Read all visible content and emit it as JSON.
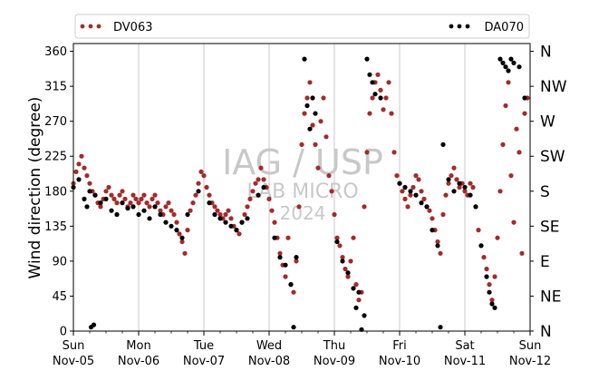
{
  "chart_data": {
    "type": "scatter",
    "title": "",
    "ylabel": "Wind direction (degree)",
    "xlabel": "",
    "xlim": [
      "2023-11-05 00:00",
      "2023-11-12 00:00"
    ],
    "ylim": [
      0,
      370
    ],
    "grid": "vertical at day boundaries",
    "legend_placement": "top, spanning width",
    "yticks": [
      "0",
      "45",
      "90",
      "135",
      "180",
      "225",
      "270",
      "315",
      "360"
    ],
    "compass_ticks": [
      "N",
      "NE",
      "E",
      "SE",
      "S",
      "SW",
      "W",
      "NW",
      "N"
    ],
    "xticks": [
      {
        "day": "Sun",
        "date": "Nov-05"
      },
      {
        "day": "Mon",
        "date": "Nov-06"
      },
      {
        "day": "Tue",
        "date": "Nov-07"
      },
      {
        "day": "Wed",
        "date": "Nov-08"
      },
      {
        "day": "Thu",
        "date": "Nov-09"
      },
      {
        "day": "Fri",
        "date": "Nov-10"
      },
      {
        "day": "Sat",
        "date": "Nov-11"
      },
      {
        "day": "Sun",
        "date": "Nov-12"
      }
    ],
    "watermark": [
      "IAG / USP",
      "LAB MICRO",
      "2024"
    ],
    "series": [
      {
        "name": "DV063",
        "color": "#a52a2a",
        "points": [
          [
            "11-05 00:00",
            190
          ],
          [
            "11-05 01:00",
            205
          ],
          [
            "11-05 02:00",
            215
          ],
          [
            "11-05 03:00",
            225
          ],
          [
            "11-05 04:00",
            210
          ],
          [
            "11-05 05:00",
            200
          ],
          [
            "11-05 06:00",
            190
          ],
          [
            "11-05 07:00",
            180
          ],
          [
            "11-05 08:00",
            175
          ],
          [
            "11-05 09:00",
            165
          ],
          [
            "11-05 10:00",
            160
          ],
          [
            "11-05 11:00",
            170
          ],
          [
            "11-05 12:00",
            180
          ],
          [
            "11-05 13:00",
            185
          ],
          [
            "11-05 14:00",
            175
          ],
          [
            "11-05 15:00",
            170
          ],
          [
            "11-05 16:00",
            165
          ],
          [
            "11-05 17:00",
            175
          ],
          [
            "11-05 18:00",
            180
          ],
          [
            "11-05 19:00",
            170
          ],
          [
            "11-05 20:00",
            160
          ],
          [
            "11-05 21:00",
            165
          ],
          [
            "11-05 22:00",
            175
          ],
          [
            "11-05 23:00",
            170
          ],
          [
            "11-06 00:00",
            165
          ],
          [
            "11-06 01:00",
            170
          ],
          [
            "11-06 02:00",
            175
          ],
          [
            "11-06 03:00",
            165
          ],
          [
            "11-06 04:00",
            160
          ],
          [
            "11-06 05:00",
            170
          ],
          [
            "11-06 06:00",
            175
          ],
          [
            "11-06 07:00",
            165
          ],
          [
            "11-06 08:00",
            155
          ],
          [
            "11-06 09:00",
            150
          ],
          [
            "11-06 10:00",
            160
          ],
          [
            "11-06 11:00",
            165
          ],
          [
            "11-06 12:00",
            155
          ],
          [
            "11-06 13:00",
            150
          ],
          [
            "11-06 14:00",
            140
          ],
          [
            "11-06 15:00",
            125
          ],
          [
            "11-06 16:00",
            115
          ],
          [
            "11-06 17:00",
            100
          ],
          [
            "11-06 18:00",
            130
          ],
          [
            "11-06 19:00",
            155
          ],
          [
            "11-06 20:00",
            165
          ],
          [
            "11-06 21:00",
            175
          ],
          [
            "11-06 22:00",
            190
          ],
          [
            "11-06 23:00",
            205
          ],
          [
            "11-07 00:00",
            200
          ],
          [
            "11-07 01:00",
            185
          ],
          [
            "11-07 02:00",
            175
          ],
          [
            "11-07 03:00",
            165
          ],
          [
            "11-07 04:00",
            160
          ],
          [
            "11-07 05:00",
            155
          ],
          [
            "11-07 06:00",
            150
          ],
          [
            "11-07 07:00",
            145
          ],
          [
            "11-07 08:00",
            150
          ],
          [
            "11-07 09:00",
            155
          ],
          [
            "11-07 10:00",
            145
          ],
          [
            "11-07 11:00",
            135
          ],
          [
            "11-07 12:00",
            130
          ],
          [
            "11-07 13:00",
            125
          ],
          [
            "11-07 14:00",
            140
          ],
          [
            "11-07 15:00",
            150
          ],
          [
            "11-07 16:00",
            160
          ],
          [
            "11-07 17:00",
            170
          ],
          [
            "11-07 18:00",
            180
          ],
          [
            "11-07 19:00",
            190
          ],
          [
            "11-07 20:00",
            195
          ],
          [
            "11-07 21:00",
            210
          ],
          [
            "11-07 22:00",
            195
          ],
          [
            "11-07 23:00",
            185
          ],
          [
            "11-08 00:00",
            170
          ],
          [
            "11-08 01:00",
            155
          ],
          [
            "11-08 02:00",
            140
          ],
          [
            "11-08 03:00",
            120
          ],
          [
            "11-08 04:00",
            100
          ],
          [
            "11-08 05:00",
            85
          ],
          [
            "11-08 06:00",
            70
          ],
          [
            "11-08 07:00",
            120
          ],
          [
            "11-08 08:00",
            60
          ],
          [
            "11-08 09:00",
            50
          ],
          [
            "11-08 10:00",
            90
          ],
          [
            "11-08 11:00",
            160
          ],
          [
            "11-08 12:00",
            240
          ],
          [
            "11-08 13:00",
            280
          ],
          [
            "11-08 14:00",
            300
          ],
          [
            "11-08 15:00",
            320
          ],
          [
            "11-08 16:00",
            265
          ],
          [
            "11-08 17:00",
            240
          ],
          [
            "11-08 18:00",
            210
          ],
          [
            "11-08 19:00",
            270
          ],
          [
            "11-08 20:00",
            300
          ],
          [
            "11-08 21:00",
            250
          ],
          [
            "11-08 22:00",
            200
          ],
          [
            "11-08 23:00",
            180
          ],
          [
            "11-09 00:00",
            150
          ],
          [
            "11-09 01:00",
            120
          ],
          [
            "11-09 02:00",
            110
          ],
          [
            "11-09 03:00",
            95
          ],
          [
            "11-09 04:00",
            80
          ],
          [
            "11-09 05:00",
            70
          ],
          [
            "11-09 06:00",
            90
          ],
          [
            "11-09 07:00",
            120
          ],
          [
            "11-09 08:00",
            60
          ],
          [
            "11-09 09:00",
            40
          ],
          [
            "11-09 10:00",
            50
          ],
          [
            "11-09 11:00",
            160
          ],
          [
            "11-09 12:00",
            230
          ],
          [
            "11-09 13:00",
            280
          ],
          [
            "11-09 14:00",
            300
          ],
          [
            "11-09 15:00",
            320
          ],
          [
            "11-09 16:00",
            330
          ],
          [
            "11-09 17:00",
            310
          ],
          [
            "11-09 18:00",
            285
          ],
          [
            "11-09 19:00",
            300
          ],
          [
            "11-09 20:00",
            320
          ],
          [
            "11-09 21:00",
            280
          ],
          [
            "11-09 22:00",
            230
          ],
          [
            "11-09 23:00",
            200
          ],
          [
            "11-10 00:00",
            190
          ],
          [
            "11-10 01:00",
            180
          ],
          [
            "11-10 02:00",
            170
          ],
          [
            "11-10 03:00",
            160
          ],
          [
            "11-10 04:00",
            175
          ],
          [
            "11-10 05:00",
            185
          ],
          [
            "11-10 06:00",
            200
          ],
          [
            "11-10 07:00",
            195
          ],
          [
            "11-10 08:00",
            180
          ],
          [
            "11-10 09:00",
            170
          ],
          [
            "11-10 10:00",
            160
          ],
          [
            "11-10 11:00",
            155
          ],
          [
            "11-10 12:00",
            145
          ],
          [
            "11-10 13:00",
            130
          ],
          [
            "11-10 14:00",
            115
          ],
          [
            "11-10 15:00",
            100
          ],
          [
            "11-10 16:00",
            150
          ],
          [
            "11-10 17:00",
            175
          ],
          [
            "11-10 18:00",
            190
          ],
          [
            "11-10 19:00",
            200
          ],
          [
            "11-10 20:00",
            210
          ],
          [
            "11-10 21:00",
            195
          ],
          [
            "11-10 22:00",
            185
          ],
          [
            "11-10 23:00",
            190
          ],
          [
            "11-11 00:00",
            180
          ],
          [
            "11-11 01:00",
            175
          ],
          [
            "11-11 02:00",
            190
          ],
          [
            "11-11 03:00",
            185
          ],
          [
            "11-11 04:00",
            160
          ],
          [
            "11-11 05:00",
            130
          ],
          [
            "11-11 06:00",
            110
          ],
          [
            "11-11 07:00",
            95
          ],
          [
            "11-11 08:00",
            80
          ],
          [
            "11-11 09:00",
            60
          ],
          [
            "11-11 10:00",
            40
          ],
          [
            "11-11 11:00",
            70
          ],
          [
            "11-11 12:00",
            120
          ],
          [
            "11-11 13:00",
            180
          ],
          [
            "11-11 14:00",
            240
          ],
          [
            "11-11 15:00",
            290
          ],
          [
            "11-11 16:00",
            320
          ],
          [
            "11-11 17:00",
            200
          ],
          [
            "11-11 18:00",
            140
          ],
          [
            "11-11 19:00",
            260
          ],
          [
            "11-11 20:00",
            230
          ],
          [
            "11-11 21:00",
            100
          ],
          [
            "11-11 22:00",
            280
          ],
          [
            "11-11 23:00",
            300
          ]
        ]
      },
      {
        "name": "DA070",
        "color": "#000000",
        "points": [
          [
            "11-05 00:00",
            185
          ],
          [
            "11-05 02:00",
            195
          ],
          [
            "11-05 04:00",
            170
          ],
          [
            "11-05 05:00",
            160
          ],
          [
            "11-05 06:00",
            180
          ],
          [
            "11-05 06:30",
            5
          ],
          [
            "11-05 07:30",
            8
          ],
          [
            "11-05 08:00",
            175
          ],
          [
            "11-05 10:00",
            165
          ],
          [
            "11-05 12:00",
            170
          ],
          [
            "11-05 14:00",
            155
          ],
          [
            "11-05 16:00",
            150
          ],
          [
            "11-05 18:00",
            165
          ],
          [
            "11-05 20:00",
            158
          ],
          [
            "11-05 22:00",
            160
          ],
          [
            "11-06 00:00",
            150
          ],
          [
            "11-06 02:00",
            155
          ],
          [
            "11-06 04:00",
            145
          ],
          [
            "11-06 06:00",
            160
          ],
          [
            "11-06 08:00",
            150
          ],
          [
            "11-06 10:00",
            140
          ],
          [
            "11-06 12:00",
            135
          ],
          [
            "11-06 14:00",
            130
          ],
          [
            "11-06 16:00",
            120
          ],
          [
            "11-06 18:00",
            150
          ],
          [
            "11-06 22:00",
            180
          ],
          [
            "11-07 02:00",
            165
          ],
          [
            "11-07 04:00",
            150
          ],
          [
            "11-07 06:00",
            145
          ],
          [
            "11-07 08:00",
            140
          ],
          [
            "11-07 10:00",
            135
          ],
          [
            "11-07 12:00",
            130
          ],
          [
            "11-07 14:00",
            140
          ],
          [
            "11-07 16:00",
            145
          ],
          [
            "11-07 20:00",
            175
          ],
          [
            "11-07 22:00",
            185
          ],
          [
            "11-08 02:00",
            120
          ],
          [
            "11-08 04:00",
            95
          ],
          [
            "11-08 06:00",
            85
          ],
          [
            "11-08 08:00",
            60
          ],
          [
            "11-08 09:00",
            5
          ],
          [
            "11-08 10:00",
            95
          ],
          [
            "11-08 13:00",
            350
          ],
          [
            "11-08 14:00",
            290
          ],
          [
            "11-08 15:00",
            260
          ],
          [
            "11-08 16:00",
            300
          ],
          [
            "11-08 17:00",
            280
          ],
          [
            "11-09 01:00",
            115
          ],
          [
            "11-09 03:00",
            90
          ],
          [
            "11-09 05:00",
            75
          ],
          [
            "11-09 07:00",
            55
          ],
          [
            "11-09 08:00",
            30
          ],
          [
            "11-09 09:00",
            50
          ],
          [
            "11-09 10:00",
            2
          ],
          [
            "11-09 11:00",
            20
          ],
          [
            "11-09 12:00",
            350
          ],
          [
            "11-09 13:00",
            330
          ],
          [
            "11-09 14:00",
            320
          ],
          [
            "11-09 15:00",
            305
          ],
          [
            "11-09 17:00",
            300
          ],
          [
            "11-10 00:00",
            190
          ],
          [
            "11-10 02:00",
            185
          ],
          [
            "11-10 04:00",
            180
          ],
          [
            "11-10 06:00",
            175
          ],
          [
            "11-10 08:00",
            165
          ],
          [
            "11-10 10:00",
            160
          ],
          [
            "11-10 12:00",
            130
          ],
          [
            "11-10 14:00",
            110
          ],
          [
            "11-10 15:00",
            5
          ],
          [
            "11-10 16:00",
            240
          ],
          [
            "11-10 18:00",
            195
          ],
          [
            "11-10 20:00",
            180
          ],
          [
            "11-10 22:00",
            190
          ],
          [
            "11-11 00:00",
            185
          ],
          [
            "11-11 02:00",
            175
          ],
          [
            "11-11 04:00",
            160
          ],
          [
            "11-11 06:00",
            110
          ],
          [
            "11-11 08:00",
            70
          ],
          [
            "11-11 09:00",
            50
          ],
          [
            "11-11 10:00",
            35
          ],
          [
            "11-11 11:00",
            30
          ],
          [
            "11-11 13:00",
            350
          ],
          [
            "11-11 14:00",
            345
          ],
          [
            "11-11 15:00",
            340
          ],
          [
            "11-11 16:00",
            335
          ],
          [
            "11-11 17:00",
            350
          ],
          [
            "11-11 18:00",
            345
          ],
          [
            "11-11 20:00",
            340
          ],
          [
            "11-11 22:00",
            300
          ]
        ]
      }
    ]
  }
}
